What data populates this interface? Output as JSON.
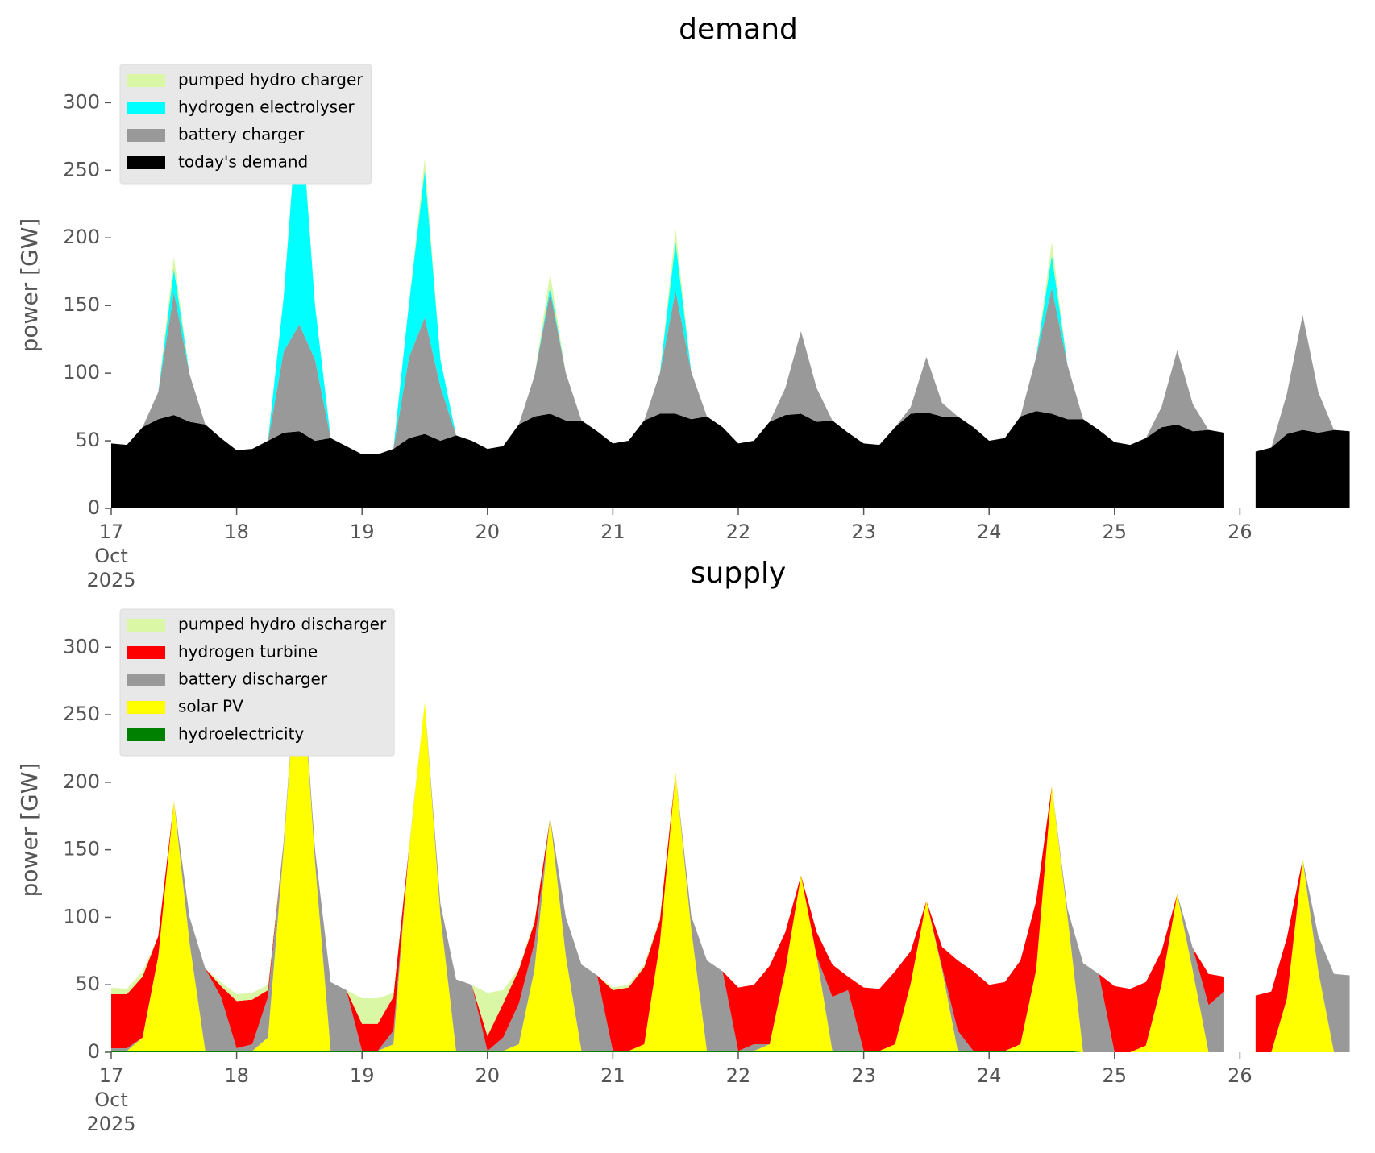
{
  "chart_data": [
    {
      "type": "area",
      "stacked": true,
      "title": "demand",
      "ylabel": "power [GW]",
      "legend": "upper left",
      "xlim": [
        17,
        27
      ],
      "xticks": [
        {
          "value": 17,
          "label": "17\nOct\n2025"
        },
        18,
        19,
        20,
        21,
        22,
        23,
        24,
        25,
        26
      ],
      "ylim": [
        0,
        330
      ],
      "yticks": [
        0,
        50,
        100,
        150,
        200,
        250,
        300
      ],
      "x": [
        17,
        17.125,
        17.25,
        17.375,
        17.5,
        17.625,
        17.75,
        17.875,
        18,
        18.125,
        18.25,
        18.375,
        18.5,
        18.625,
        18.75,
        18.875,
        19,
        19.125,
        19.25,
        19.375,
        19.5,
        19.625,
        19.75,
        19.875,
        20,
        20.125,
        20.25,
        20.375,
        20.5,
        20.625,
        20.75,
        20.875,
        21,
        21.125,
        21.25,
        21.375,
        21.5,
        21.625,
        21.75,
        21.875,
        22,
        22.125,
        22.25,
        22.375,
        22.5,
        22.625,
        22.75,
        22.875,
        23,
        23.125,
        23.25,
        23.375,
        23.5,
        23.625,
        23.75,
        23.875,
        24,
        24.125,
        24.25,
        24.375,
        24.5,
        24.625,
        24.75,
        24.875,
        25,
        25.125,
        25.25,
        25.375,
        25.5,
        25.625,
        25.75,
        25.875,
        26,
        26.125,
        26.25,
        26.375,
        26.5,
        26.625,
        26.75,
        26.875
      ],
      "series": [
        {
          "name": "today's demand",
          "color": "#000000",
          "values": [
            48,
            47,
            60,
            66,
            69,
            64,
            62,
            52,
            43,
            44,
            50,
            56,
            57,
            50,
            52,
            46,
            40,
            40,
            44,
            52,
            55,
            50,
            54,
            50,
            44,
            46,
            62,
            68,
            70,
            65,
            65,
            57,
            48,
            50,
            65,
            70,
            70,
            66,
            68,
            60,
            48,
            50,
            64,
            69,
            70,
            64,
            65,
            56,
            48,
            47,
            60,
            70,
            71,
            68,
            68,
            60,
            50,
            52,
            68,
            72,
            70,
            66,
            66,
            58,
            49,
            47,
            52,
            60,
            62,
            57,
            58,
            56,
            null,
            42,
            45,
            55,
            58,
            56,
            58,
            57
          ]
        },
        {
          "name": "battery charger",
          "color": "#999999",
          "values": [
            0,
            0,
            0,
            20,
            91,
            35,
            0,
            0,
            0,
            0,
            0,
            60,
            79,
            60,
            0,
            0,
            0,
            0,
            0,
            60,
            86,
            40,
            0,
            0,
            0,
            0,
            0,
            30,
            90,
            35,
            0,
            0,
            0,
            0,
            0,
            30,
            91,
            35,
            0,
            0,
            0,
            0,
            0,
            20,
            61,
            25,
            0,
            0,
            0,
            0,
            0,
            5,
            41,
            10,
            0,
            0,
            0,
            0,
            0,
            40,
            93,
            40,
            0,
            0,
            0,
            0,
            0,
            15,
            55,
            20,
            0,
            0,
            null,
            0,
            0,
            30,
            85,
            30,
            0,
            0
          ]
        },
        {
          "name": "hydrogen electrolyser",
          "color": "#00ffff",
          "values": [
            0,
            0,
            0,
            0,
            17,
            0,
            0,
            0,
            0,
            0,
            0,
            40,
            174,
            40,
            0,
            0,
            0,
            0,
            0,
            40,
            109,
            20,
            0,
            0,
            0,
            0,
            0,
            0,
            4,
            0,
            0,
            0,
            0,
            0,
            0,
            0,
            36,
            0,
            0,
            0,
            0,
            0,
            0,
            0,
            0,
            0,
            0,
            0,
            0,
            0,
            0,
            0,
            0,
            0,
            0,
            0,
            0,
            0,
            0,
            0,
            24,
            0,
            0,
            0,
            0,
            0,
            0,
            0,
            0,
            0,
            0,
            0,
            null,
            0,
            0,
            0,
            0,
            0,
            0,
            0
          ]
        },
        {
          "name": "pumped hydro charger",
          "color": "#daf7a6",
          "values": [
            0,
            0,
            0,
            0,
            9,
            0,
            0,
            0,
            0,
            0,
            0,
            0,
            5,
            0,
            0,
            0,
            0,
            0,
            0,
            0,
            9,
            0,
            0,
            0,
            0,
            0,
            0,
            0,
            10,
            0,
            0,
            0,
            0,
            0,
            0,
            0,
            10,
            0,
            0,
            0,
            0,
            0,
            0,
            0,
            0,
            0,
            0,
            0,
            0,
            0,
            0,
            0,
            0,
            0,
            0,
            0,
            0,
            0,
            0,
            0,
            10,
            0,
            0,
            0,
            0,
            0,
            0,
            0,
            0,
            0,
            0,
            0,
            null,
            0,
            0,
            0,
            0,
            0,
            0,
            0
          ]
        }
      ]
    },
    {
      "type": "area",
      "stacked": true,
      "title": "supply",
      "ylabel": "power [GW]",
      "legend": "upper left",
      "xlim": [
        17,
        27
      ],
      "xticks": [
        {
          "value": 17,
          "label": "17\nOct\n2025"
        },
        18,
        19,
        20,
        21,
        22,
        23,
        24,
        25,
        26
      ],
      "ylim": [
        0,
        330
      ],
      "yticks": [
        0,
        50,
        100,
        150,
        200,
        250,
        300
      ],
      "x": [
        17,
        17.125,
        17.25,
        17.375,
        17.5,
        17.625,
        17.75,
        17.875,
        18,
        18.125,
        18.25,
        18.375,
        18.5,
        18.625,
        18.75,
        18.875,
        19,
        19.125,
        19.25,
        19.375,
        19.5,
        19.625,
        19.75,
        19.875,
        20,
        20.125,
        20.25,
        20.375,
        20.5,
        20.625,
        20.75,
        20.875,
        21,
        21.125,
        21.25,
        21.375,
        21.5,
        21.625,
        21.75,
        21.875,
        22,
        22.125,
        22.25,
        22.375,
        22.5,
        22.625,
        22.75,
        22.875,
        23,
        23.125,
        23.25,
        23.375,
        23.5,
        23.625,
        23.75,
        23.875,
        24,
        24.125,
        24.25,
        24.375,
        24.5,
        24.625,
        24.75,
        24.875,
        25,
        25.125,
        25.25,
        25.375,
        25.5,
        25.625,
        25.75,
        25.875,
        26,
        26.125,
        26.25,
        26.375,
        26.5,
        26.625,
        26.75,
        26.875
      ],
      "series": [
        {
          "name": "hydroelectricity",
          "color": "#008000",
          "values": [
            1,
            1,
            1,
            1,
            1,
            1,
            1,
            1,
            1,
            1,
            1,
            1,
            1,
            1,
            1,
            1,
            1,
            1,
            1,
            1,
            1,
            1,
            1,
            1,
            1,
            1,
            1,
            1,
            1,
            1,
            1,
            1,
            1,
            1,
            1,
            1,
            1,
            1,
            1,
            1,
            1,
            1,
            1,
            1,
            1,
            1,
            1,
            1,
            1,
            1,
            1,
            1,
            1,
            1,
            1,
            1,
            1,
            1,
            1,
            1,
            1,
            1,
            0,
            0,
            0,
            0,
            0,
            0,
            0,
            0,
            0,
            0,
            null,
            0,
            0,
            0,
            0,
            0,
            0,
            0
          ]
        },
        {
          "name": "solar PV",
          "color": "#ffff00",
          "values": [
            0,
            0,
            10,
            70,
            185,
            80,
            0,
            0,
            0,
            0,
            10,
            150,
            314,
            140,
            0,
            0,
            0,
            0,
            5,
            150,
            258,
            100,
            0,
            0,
            0,
            0,
            5,
            60,
            173,
            70,
            0,
            0,
            0,
            0,
            5,
            80,
            206,
            90,
            0,
            0,
            0,
            0,
            5,
            60,
            130,
            70,
            0,
            0,
            0,
            0,
            5,
            50,
            111,
            60,
            0,
            0,
            0,
            0,
            5,
            60,
            196,
            100,
            0,
            0,
            0,
            0,
            5,
            50,
            117,
            60,
            0,
            0,
            null,
            0,
            0,
            40,
            143,
            60,
            0,
            0
          ]
        },
        {
          "name": "battery discharger",
          "color": "#999999",
          "values": [
            2,
            2,
            0,
            0,
            0,
            19,
            61,
            40,
            2,
            5,
            30,
            5,
            0,
            9,
            51,
            45,
            0,
            0,
            10,
            1,
            0,
            9,
            53,
            49,
            0,
            10,
            30,
            20,
            0,
            29,
            64,
            56,
            0,
            0,
            0,
            0,
            0,
            10,
            67,
            59,
            0,
            5,
            0,
            0,
            0,
            0,
            40,
            45,
            0,
            0,
            0,
            0,
            0,
            2,
            15,
            0,
            0,
            0,
            0,
            0,
            0,
            5,
            66,
            58,
            0,
            0,
            0,
            0,
            0,
            17,
            35,
            45,
            null,
            0,
            0,
            0,
            0,
            26,
            58,
            57
          ]
        },
        {
          "name": "hydrogen turbine",
          "color": "#ff0000",
          "values": [
            40,
            40,
            45,
            15,
            0,
            0,
            0,
            8,
            35,
            33,
            5,
            0,
            0,
            0,
            0,
            0,
            20,
            20,
            25,
            0,
            0,
            0,
            0,
            0,
            11,
            25,
            25,
            15,
            0,
            0,
            0,
            0,
            45,
            47,
            57,
            17,
            0,
            0,
            0,
            0,
            47,
            44,
            58,
            28,
            0,
            18,
            24,
            10,
            47,
            46,
            54,
            24,
            0,
            15,
            52,
            59,
            49,
            51,
            62,
            51,
            0,
            0,
            0,
            0,
            49,
            47,
            47,
            25,
            0,
            0,
            23,
            11,
            null,
            42,
            45,
            45,
            0,
            0,
            0,
            0
          ]
        },
        {
          "name": "pumped hydro discharger",
          "color": "#daf7a6",
          "values": [
            5,
            4,
            4,
            0,
            0,
            0,
            0,
            3,
            5,
            5,
            4,
            0,
            0,
            0,
            0,
            0,
            19,
            19,
            3,
            0,
            0,
            0,
            0,
            0,
            32,
            10,
            1,
            2,
            0,
            0,
            0,
            0,
            2,
            2,
            2,
            2,
            0,
            0,
            0,
            0,
            0,
            0,
            0,
            0,
            0,
            0,
            0,
            0,
            0,
            0,
            0,
            0,
            0,
            0,
            0,
            0,
            0,
            0,
            0,
            0,
            0,
            0,
            0,
            0,
            0,
            0,
            0,
            0,
            0,
            0,
            0,
            0,
            null,
            0,
            0,
            0,
            0,
            0,
            0,
            0
          ]
        }
      ]
    }
  ]
}
